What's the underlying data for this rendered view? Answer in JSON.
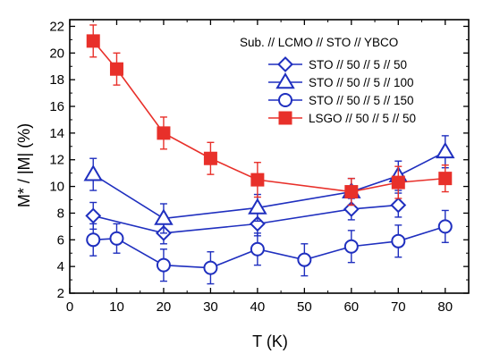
{
  "chart_data": {
    "type": "scatter",
    "xlabel": "T (K)",
    "ylabel": "M* / |M| (%)",
    "xlim": [
      0,
      85
    ],
    "ylim": [
      2,
      22.5
    ],
    "xticks": [
      0,
      10,
      20,
      30,
      40,
      50,
      60,
      70,
      80
    ],
    "yticks": [
      2,
      4,
      6,
      8,
      10,
      12,
      14,
      16,
      18,
      20,
      22
    ],
    "grid": false,
    "legend_position": "top-right",
    "legend_title": "Sub. // LCMO // STO //  YBCO",
    "series": [
      {
        "name": "STO // 50 // 5 // 50",
        "marker": "diamond",
        "color": "#1f2fbf",
        "x": [
          5,
          20,
          40,
          60,
          70
        ],
        "y": [
          7.8,
          6.5,
          7.2,
          8.3,
          8.6
        ],
        "err": [
          1.0,
          0.8,
          0.9,
          0.8,
          0.9
        ]
      },
      {
        "name": "STO // 50 // 5 // 100",
        "marker": "triangle",
        "color": "#1f2fbf",
        "x": [
          5,
          20,
          40,
          60,
          70,
          80
        ],
        "y": [
          10.9,
          7.6,
          8.4,
          9.6,
          10.8,
          12.6
        ],
        "err": [
          1.2,
          1.1,
          1.0,
          1.0,
          1.1,
          1.2
        ]
      },
      {
        "name": "STO // 50 // 5 // 150",
        "marker": "circle",
        "color": "#1f2fbf",
        "x": [
          5,
          10,
          20,
          30,
          40,
          50,
          60,
          70,
          80
        ],
        "y": [
          6.0,
          6.1,
          4.1,
          3.9,
          5.3,
          4.5,
          5.5,
          5.9,
          7.0
        ],
        "err": [
          1.2,
          1.1,
          1.2,
          1.2,
          1.2,
          1.2,
          1.2,
          1.2,
          1.2
        ]
      },
      {
        "name": "LSGO // 50 // 5 // 50",
        "marker": "square",
        "color": "#e8302a",
        "x": [
          5,
          10,
          20,
          30,
          40,
          60,
          70,
          80
        ],
        "y": [
          20.9,
          18.8,
          14.0,
          12.1,
          10.5,
          9.6,
          10.3,
          10.6
        ],
        "err": [
          1.2,
          1.2,
          1.2,
          1.2,
          1.3,
          1.0,
          1.2,
          1.0
        ]
      }
    ]
  }
}
